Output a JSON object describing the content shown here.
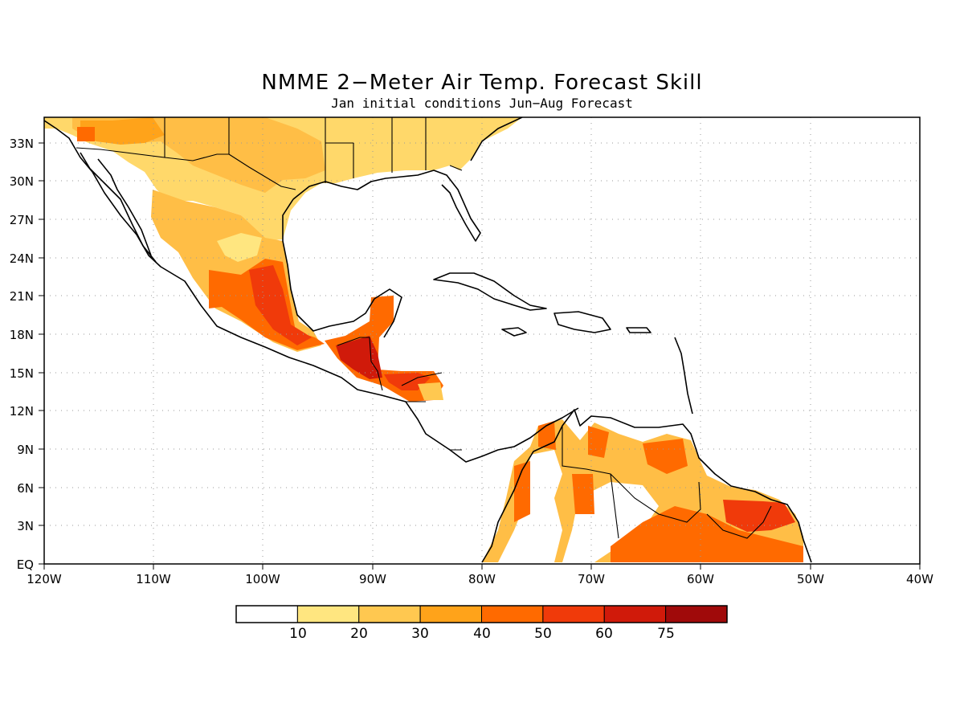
{
  "title": "NMME 2−Meter Air Temp. Forecast Skill",
  "subtitle": "Jan initial conditions  Jun−Aug Forecast",
  "map": {
    "lon_range": [
      -120,
      -40
    ],
    "lat_range": [
      0,
      35
    ],
    "grid": true,
    "lon_ticks": [
      "120W",
      "110W",
      "100W",
      "90W",
      "80W",
      "70W",
      "60W",
      "50W",
      "40W"
    ],
    "lat_ticks": [
      "EQ",
      "3N",
      "6N",
      "9N",
      "12N",
      "15N",
      "18N",
      "21N",
      "24N",
      "27N",
      "30N",
      "33N"
    ]
  },
  "colorbar": {
    "colors": [
      "#ffffff",
      "#ffe680",
      "#ffc850",
      "#ffa31a",
      "#ff6a00",
      "#f03a0a",
      "#d01a0a",
      "#a00a0a"
    ],
    "labels": [
      "10",
      "20",
      "30",
      "40",
      "50",
      "60",
      "75"
    ]
  }
}
